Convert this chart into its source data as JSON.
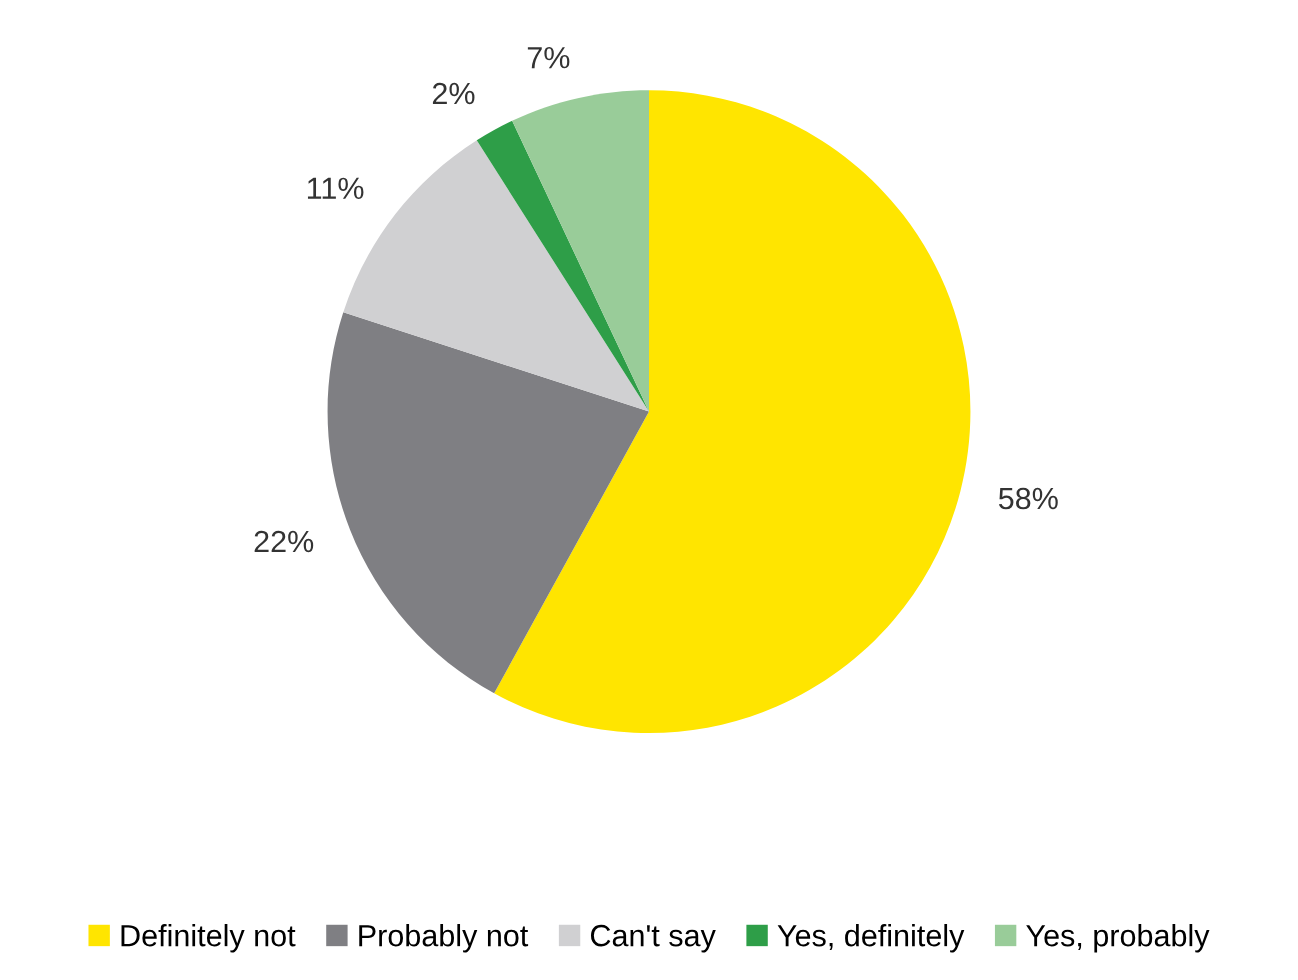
{
  "chart_data": {
    "type": "pie",
    "categories": [
      "Definitely not",
      "Probably not",
      "Can't say",
      "Yes, definitely",
      "Yes, probably"
    ],
    "values": [
      58,
      22,
      11,
      2,
      7
    ],
    "value_labels": [
      "58%",
      "22%",
      "11%",
      "2%",
      "7%"
    ],
    "colors": [
      "#ffe500",
      "#7f7f83",
      "#d0d0d2",
      "#2e9e48",
      "#99cc99"
    ],
    "legend": "bottom"
  }
}
